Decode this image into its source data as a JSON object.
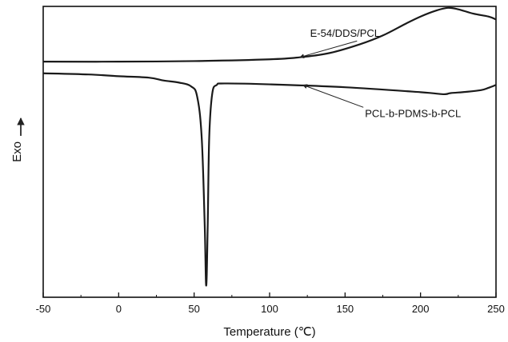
{
  "chart_data": {
    "type": "line",
    "title": "",
    "xlabel": "Temperature (℃)",
    "ylabel": "Exo",
    "xlim": [
      -50,
      250
    ],
    "xticks": [
      -50,
      0,
      50,
      100,
      150,
      200,
      250
    ],
    "ylim": [
      0,
      100
    ],
    "y_ticks_shown": false,
    "grid": false,
    "colors": {
      "line": "#1a1a1a",
      "axis": "#111111",
      "background": "#ffffff"
    },
    "series": [
      {
        "name": "E-54/DDS/PCL",
        "x": [
          -50,
          0,
          50,
          100,
          120,
          140,
          160,
          175,
          190,
          200,
          210,
          218,
          225,
          235,
          245,
          250
        ],
        "y": [
          81,
          81,
          81.2,
          81.8,
          82.5,
          84,
          87,
          90,
          94,
          96.5,
          98.5,
          99.5,
          99,
          97.5,
          96.5,
          95.5
        ]
      },
      {
        "name": "PCL-b-PDMS-b-PCL",
        "x": [
          -50,
          -20,
          0,
          20,
          30,
          40,
          48,
          52,
          55,
          57,
          58,
          59,
          60,
          62,
          65,
          70,
          100,
          150,
          200,
          215,
          220,
          230,
          240,
          245,
          250
        ],
        "y": [
          77,
          76.6,
          76,
          75.5,
          74.5,
          73.8,
          72.5,
          69,
          55,
          25,
          4,
          25,
          55,
          70,
          73,
          73.5,
          73.2,
          72.2,
          70.5,
          69.8,
          70.2,
          70.6,
          71.2,
          72,
          73
        ]
      }
    ],
    "annotations": [
      {
        "text": "E-54/DDS/PCL",
        "target_series": 0,
        "arrow_to": [
          120,
          82.5
        ],
        "text_at": [
          150,
          89.5
        ]
      },
      {
        "text": "PCL-b-PDMS-b-PCL",
        "target_series": 1,
        "arrow_to": [
          122,
          73
        ],
        "text_at": [
          195,
          62
        ]
      }
    ]
  }
}
